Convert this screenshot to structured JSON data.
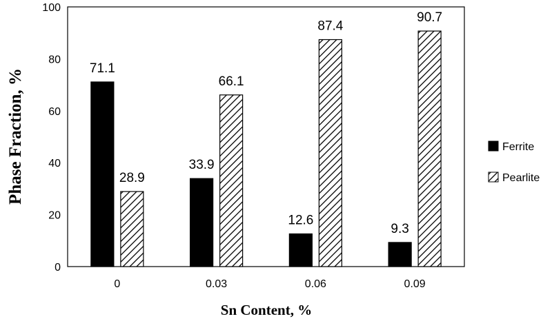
{
  "chart_data": {
    "type": "bar",
    "categories": [
      "0",
      "0.03",
      "0.06",
      "0.09"
    ],
    "series": [
      {
        "name": "Ferrite",
        "values": [
          71.1,
          33.9,
          12.6,
          9.3
        ],
        "fill": "solid",
        "color": "#000000"
      },
      {
        "name": "Pearlite",
        "values": [
          28.9,
          66.1,
          87.4,
          90.7
        ],
        "fill": "hatched",
        "color": "#000000"
      }
    ],
    "data_labels": [
      [
        "71.1",
        "33.9",
        "12.6",
        "9.3"
      ],
      [
        "28.9",
        "66.1",
        "87.4",
        "90.7"
      ]
    ],
    "xlabel": "Sn Content, %",
    "ylabel": "Phase Fraction, %",
    "ylim": [
      0,
      100
    ],
    "yticks": [
      0,
      20,
      40,
      60,
      80,
      100
    ],
    "grid": false,
    "legend_position": "right"
  }
}
